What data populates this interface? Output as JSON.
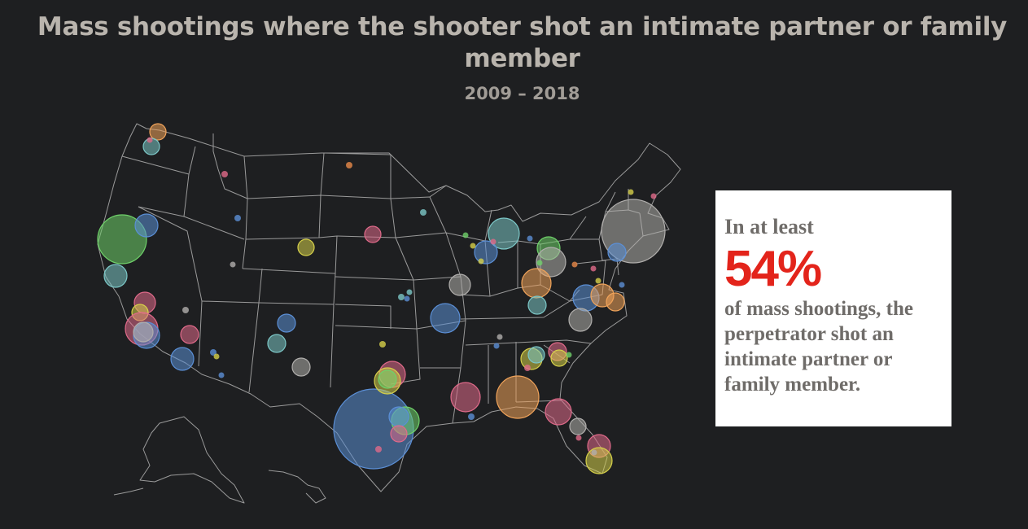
{
  "header": {
    "title": "Mass shootings where the shooter shot an intimate partner or family member",
    "subtitle": "2009 – 2018"
  },
  "callout": {
    "lead": "In at least",
    "stat": "54%",
    "body": "of mass shootings, the perpetrator shot an intimate partner or family member."
  },
  "colors": {
    "background": "#1e1f21",
    "map_lines": "#9a9a9a",
    "stat": "#e3241b",
    "bubble_palette": [
      "#5b8fd6",
      "#6fd16a",
      "#e06a8a",
      "#f0a35a",
      "#b0aeac",
      "#7cc7c7",
      "#d6d04a",
      "#e88a4a"
    ]
  }
}
